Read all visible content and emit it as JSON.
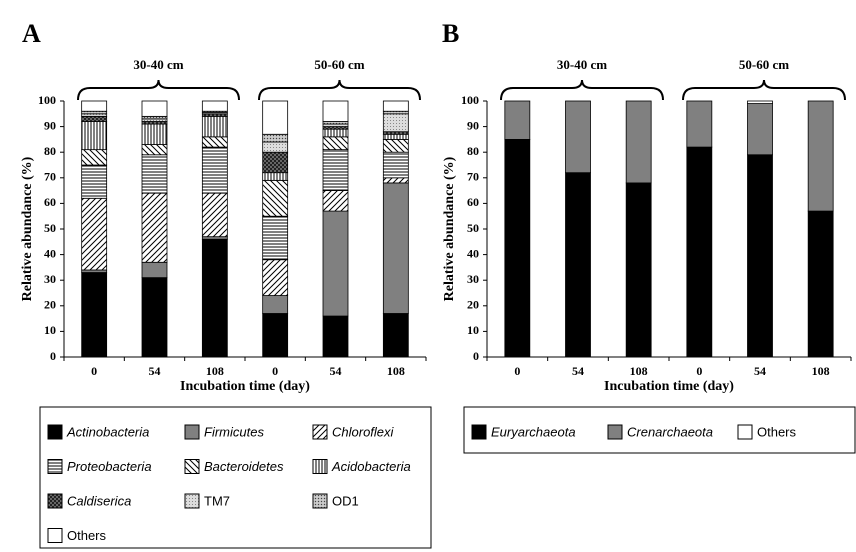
{
  "chart_data": [
    {
      "type": "stacked-bar",
      "title": "A",
      "xlabel": "Incubation time (day)",
      "ylabel": "Relative abundance (%)",
      "group_labels": [
        "30-40 cm",
        "50-60 cm"
      ],
      "categories": [
        "0",
        "54",
        "108",
        "0",
        "54",
        "108"
      ],
      "ylim": [
        0,
        100
      ],
      "yticks": [
        0,
        10,
        20,
        30,
        40,
        50,
        60,
        70,
        80,
        90,
        100
      ],
      "series": [
        {
          "name": "Actinobacteria",
          "color": "#000000",
          "italic": true,
          "values": [
            33,
            31,
            46,
            17,
            16,
            17
          ]
        },
        {
          "name": "Firmicutes",
          "color": "#808080",
          "italic": true,
          "values": [
            1,
            6,
            1,
            7,
            41,
            51
          ]
        },
        {
          "name": "Chloroflexi",
          "pattern": "diagonal",
          "italic": true,
          "values": [
            28,
            27,
            17,
            14,
            8,
            2
          ]
        },
        {
          "name": "Proteobacteria",
          "pattern": "horizontal",
          "italic": true,
          "values": [
            13,
            15,
            18,
            17,
            16,
            10
          ]
        },
        {
          "name": "Bacteroidetes",
          "pattern": "back-diagonal",
          "italic": true,
          "values": [
            6,
            4,
            4,
            14,
            5,
            5
          ]
        },
        {
          "name": "Acidobacteria",
          "pattern": "vertical",
          "italic": true,
          "values": [
            11,
            8,
            8,
            3,
            3,
            2
          ]
        },
        {
          "name": "Caldiserica",
          "pattern": "checker",
          "italic": true,
          "values": [
            2,
            1,
            1,
            8,
            1,
            1
          ]
        },
        {
          "name": "TM7",
          "pattern": "light-dots",
          "values": [
            1,
            1,
            0.5,
            4,
            1,
            7
          ]
        },
        {
          "name": "OD1",
          "pattern": "gray-dots",
          "values": [
            1,
            1,
            0.5,
            3,
            1,
            1
          ]
        },
        {
          "name": "Others",
          "color": "#ffffff",
          "values": [
            4,
            6,
            4,
            13,
            8,
            4
          ]
        }
      ]
    },
    {
      "type": "stacked-bar",
      "title": "B",
      "xlabel": "Incubation time (day)",
      "ylabel": "Relative abundance (%)",
      "group_labels": [
        "30-40 cm",
        "50-60 cm"
      ],
      "categories": [
        "0",
        "54",
        "108",
        "0",
        "54",
        "108"
      ],
      "ylim": [
        0,
        100
      ],
      "yticks": [
        0,
        10,
        20,
        30,
        40,
        50,
        60,
        70,
        80,
        90,
        100
      ],
      "series": [
        {
          "name": "Euryarchaeota",
          "color": "#000000",
          "italic": true,
          "values": [
            85,
            72,
            68,
            82,
            79,
            57
          ]
        },
        {
          "name": "Crenarchaeota",
          "color": "#808080",
          "italic": true,
          "values": [
            15,
            28,
            32,
            18,
            20,
            43
          ]
        },
        {
          "name": "Others",
          "color": "#ffffff",
          "values": [
            0,
            0,
            0,
            0,
            1,
            0
          ]
        }
      ]
    }
  ]
}
